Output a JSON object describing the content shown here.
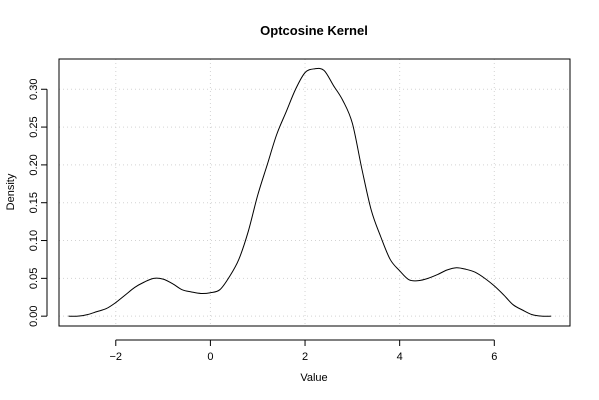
{
  "chart_data": {
    "type": "line",
    "title": "Optcosine Kernel",
    "xlabel": "Value",
    "ylabel": "Density",
    "xlim": [
      -3.2,
      7.6
    ],
    "ylim": [
      -0.013,
      0.34
    ],
    "xticks": [
      -2,
      0,
      2,
      4,
      6
    ],
    "xtick_labels": [
      "−2",
      "0",
      "2",
      "4",
      "6"
    ],
    "yticks": [
      0.0,
      0.05,
      0.1,
      0.15,
      0.2,
      0.25,
      0.3
    ],
    "ytick_labels": [
      "0.00",
      "0.05",
      "0.10",
      "0.15",
      "0.20",
      "0.25",
      "0.30"
    ],
    "grid": true,
    "series": [
      {
        "x": [
          -3.0,
          -2.8,
          -2.6,
          -2.4,
          -2.2,
          -2.0,
          -1.8,
          -1.6,
          -1.4,
          -1.2,
          -1.0,
          -0.8,
          -0.6,
          -0.4,
          -0.2,
          0.0,
          0.2,
          0.4,
          0.6,
          0.8,
          1.0,
          1.2,
          1.4,
          1.6,
          1.8,
          2.0,
          2.2,
          2.4,
          2.6,
          2.8,
          3.0,
          3.2,
          3.4,
          3.6,
          3.8,
          4.0,
          4.2,
          4.4,
          4.6,
          4.8,
          5.0,
          5.2,
          5.4,
          5.6,
          5.8,
          6.0,
          6.2,
          6.4,
          6.6,
          6.8,
          7.0,
          7.2
        ],
        "y": [
          0.0,
          0.0,
          0.002,
          0.006,
          0.01,
          0.018,
          0.028,
          0.038,
          0.045,
          0.05,
          0.049,
          0.043,
          0.035,
          0.032,
          0.03,
          0.031,
          0.035,
          0.052,
          0.075,
          0.112,
          0.16,
          0.2,
          0.24,
          0.27,
          0.3,
          0.322,
          0.327,
          0.325,
          0.305,
          0.285,
          0.255,
          0.195,
          0.14,
          0.105,
          0.075,
          0.06,
          0.048,
          0.047,
          0.05,
          0.055,
          0.061,
          0.064,
          0.062,
          0.058,
          0.05,
          0.04,
          0.028,
          0.015,
          0.008,
          0.002,
          0.0,
          0.0
        ]
      }
    ]
  }
}
